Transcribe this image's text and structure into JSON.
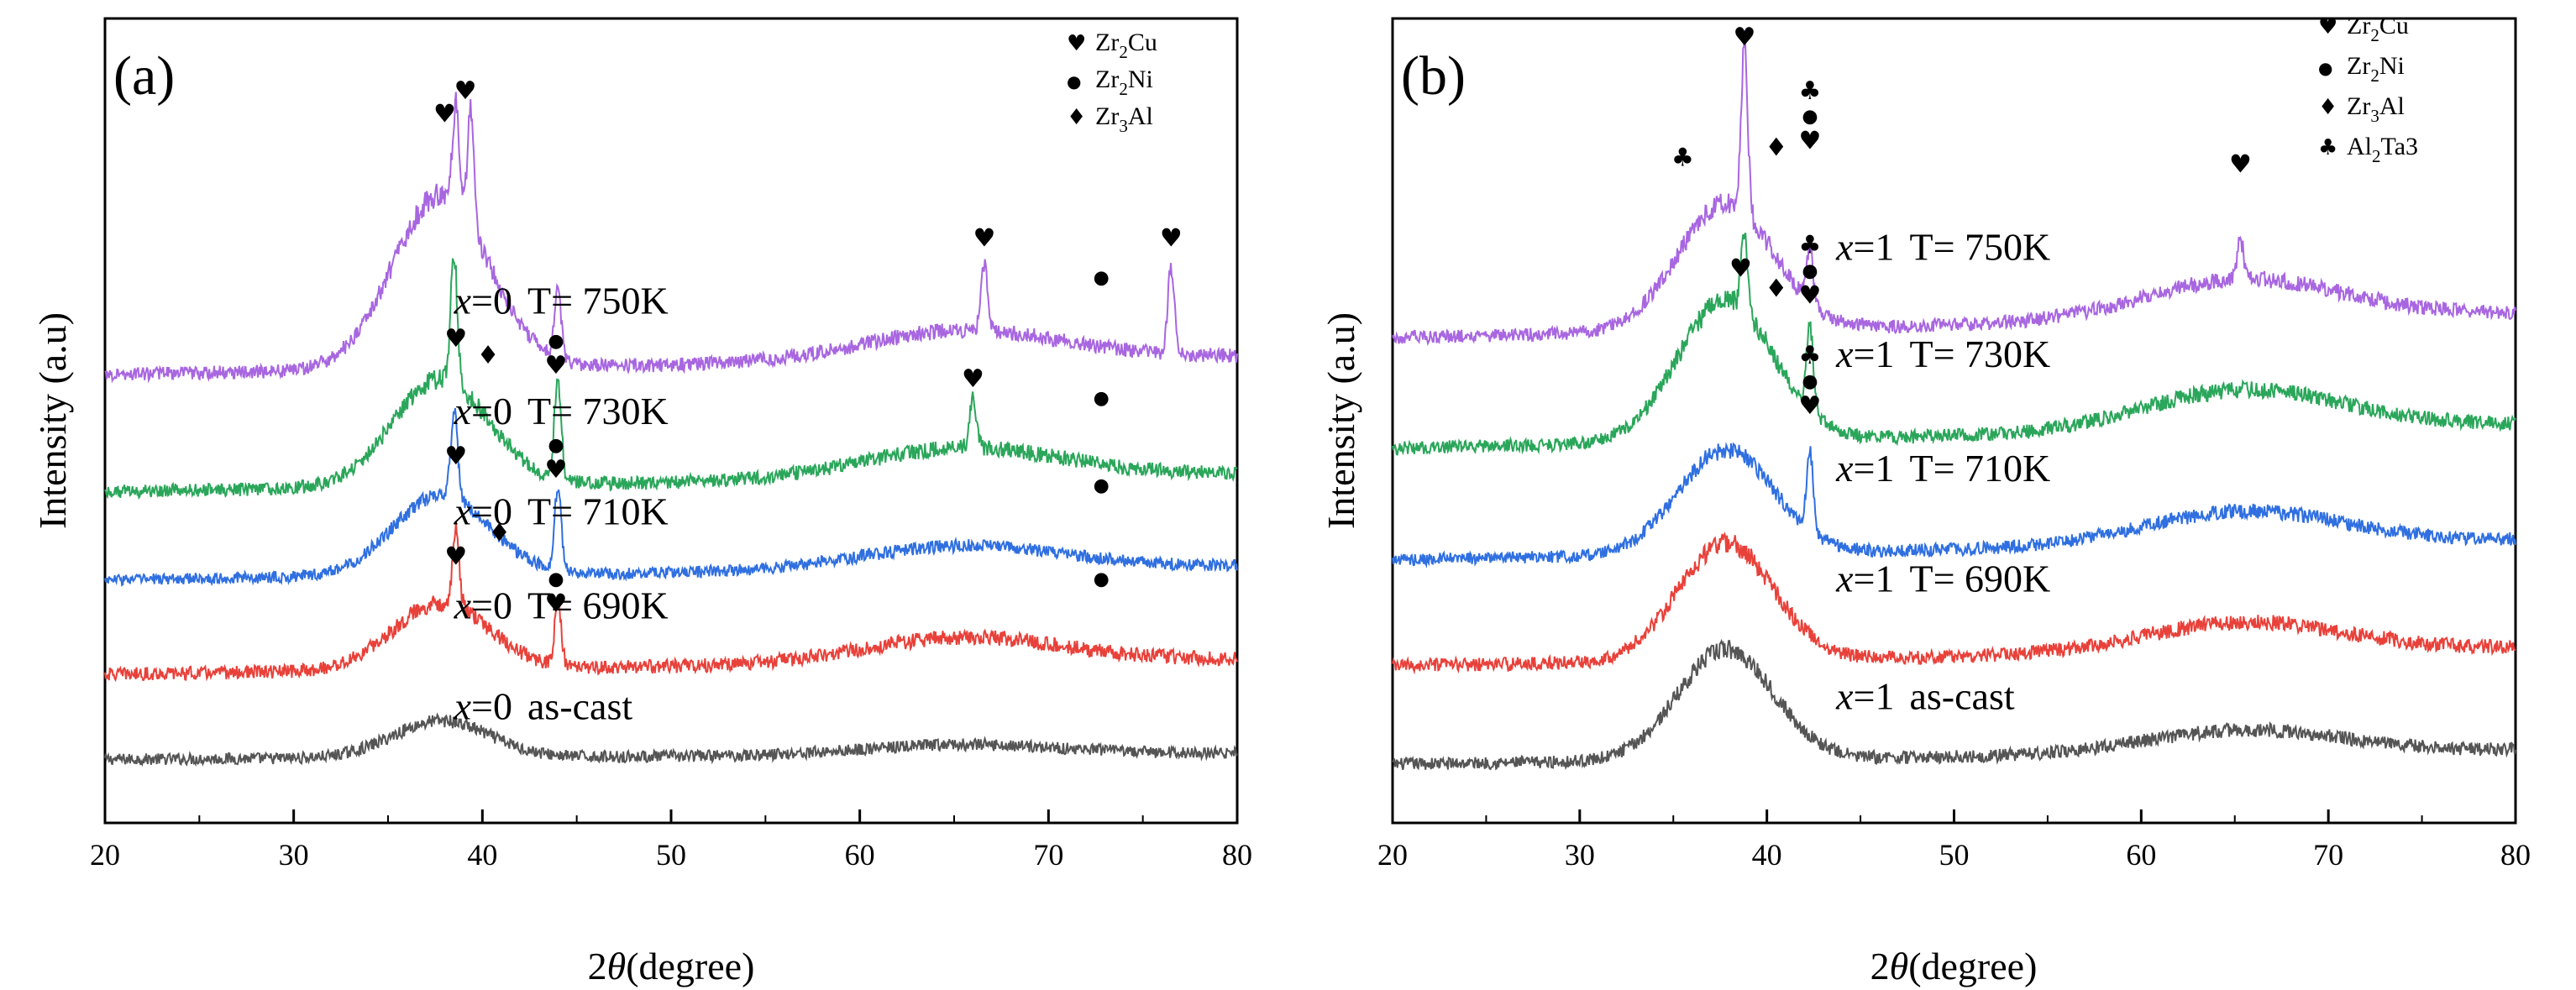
{
  "chart_data": [
    {
      "type": "line",
      "panel_label": "(a)",
      "xlabel_italic": "θ",
      "xlabel_pre": "2",
      "xlabel_post": "(degree)",
      "ylabel": "Intensity (a.u)",
      "xlim": [
        20,
        80
      ],
      "x_ticks": [
        20,
        30,
        40,
        50,
        60,
        70,
        80
      ],
      "tick_labels": [
        "20",
        "30",
        "40",
        "50",
        "60",
        "70",
        "80"
      ],
      "ylim": [
        0,
        12
      ],
      "y_tick_labels_shown": false,
      "legend": [
        {
          "symbol": "♥",
          "label_base": "Zr",
          "label_sub": "2",
          "label_tail": "Cu"
        },
        {
          "symbol": "●",
          "label_base": "Zr",
          "label_sub": "2",
          "label_tail": "Ni"
        },
        {
          "symbol": "♦",
          "label_base": "Zr",
          "label_sub": "3",
          "label_tail": "Al"
        }
      ],
      "series": [
        {
          "var": "x",
          "eq": "=0",
          "cond": "as-cast",
          "color": "#555555",
          "baseline": 1.0,
          "amp1": 0.55,
          "amp2": 0.15,
          "noise": 0.22,
          "peaks": [],
          "label_x": 38.5,
          "label_y": 1.55
        },
        {
          "var": "x",
          "eq": "=0",
          "cond": "T= 690K",
          "color": "#e8413a",
          "baseline": 2.35,
          "amp1": 1.0,
          "amp2": 0.38,
          "noise": 0.26,
          "peaks": [
            [
              38.6,
              1.1
            ],
            [
              44.0,
              0.9
            ]
          ],
          "label_x": 38.5,
          "label_y": 3.05
        },
        {
          "var": "x",
          "eq": "=0",
          "cond": "T= 710K",
          "color": "#2f6fe0",
          "baseline": 3.75,
          "amp1": 1.2,
          "amp2": 0.35,
          "noise": 0.22,
          "peaks": [
            [
              38.5,
              1.3
            ],
            [
              44.0,
              1.25
            ]
          ],
          "label_x": 38.5,
          "label_y": 4.45
        },
        {
          "var": "x",
          "eq": "=0",
          "cond": "T= 730K",
          "color": "#2aa65a",
          "baseline": 5.1,
          "amp1": 1.6,
          "amp2": 0.45,
          "noise": 0.26,
          "peaks": [
            [
              38.5,
              1.9
            ],
            [
              44.0,
              1.5
            ],
            [
              66.0,
              0.7
            ]
          ],
          "label_x": 38.5,
          "label_y": 5.95
        },
        {
          "var": "x",
          "eq": "=0",
          "cond": "T= 750K",
          "color": "#a866e0",
          "baseline": 6.85,
          "amp1": 2.6,
          "amp2": 0.45,
          "noise": 0.26,
          "peaks": [
            [
              38.6,
              1.5
            ],
            [
              39.4,
              1.7
            ],
            [
              44.0,
              1.0
            ],
            [
              66.6,
              1.0
            ],
            [
              76.5,
              1.3
            ]
          ],
          "label_x": 38.5,
          "label_y": 7.6
        }
      ],
      "markers": [
        {
          "x": 40.9,
          "y": 4.2,
          "sym": "♦"
        },
        {
          "x": 43.9,
          "y": 3.55,
          "sym": "●"
        },
        {
          "x": 43.9,
          "y": 3.15,
          "sym": "♥"
        },
        {
          "x": 38.6,
          "y": 3.85,
          "sym": "♥"
        },
        {
          "x": 72.8,
          "y": 3.55,
          "sym": "●"
        },
        {
          "x": 43.9,
          "y": 5.55,
          "sym": "●"
        },
        {
          "x": 43.9,
          "y": 5.15,
          "sym": "♥"
        },
        {
          "x": 38.6,
          "y": 5.35,
          "sym": "♥"
        },
        {
          "x": 72.8,
          "y": 4.95,
          "sym": "●"
        },
        {
          "x": 40.3,
          "y": 6.85,
          "sym": "♦"
        },
        {
          "x": 43.9,
          "y": 7.1,
          "sym": "●"
        },
        {
          "x": 43.9,
          "y": 6.7,
          "sym": "♥"
        },
        {
          "x": 38.6,
          "y": 7.1,
          "sym": "♥"
        },
        {
          "x": 66.0,
          "y": 6.5,
          "sym": "♥"
        },
        {
          "x": 72.8,
          "y": 6.25,
          "sym": "●"
        },
        {
          "x": 38.0,
          "y": 10.45,
          "sym": "♥"
        },
        {
          "x": 39.1,
          "y": 10.8,
          "sym": "♥"
        },
        {
          "x": 66.6,
          "y": 8.6,
          "sym": "♥"
        },
        {
          "x": 72.8,
          "y": 8.05,
          "sym": "●"
        },
        {
          "x": 76.5,
          "y": 8.6,
          "sym": "♥"
        }
      ]
    },
    {
      "type": "line",
      "panel_label": "(b)",
      "xlabel_italic": "θ",
      "xlabel_pre": "2",
      "xlabel_post": "(degree)",
      "ylabel": "Intensity (a.u)",
      "xlim": [
        20,
        80
      ],
      "x_ticks": [
        20,
        30,
        40,
        50,
        60,
        70,
        80
      ],
      "tick_labels": [
        "20",
        "30",
        "40",
        "50",
        "60",
        "70",
        "80"
      ],
      "ylim": [
        0,
        12
      ],
      "y_tick_labels_shown": false,
      "legend": [
        {
          "symbol": "♥",
          "label_base": "Zr",
          "label_sub": "2",
          "label_tail": "Cu"
        },
        {
          "symbol": "●",
          "label_base": "Zr",
          "label_sub": "2",
          "label_tail": "Ni"
        },
        {
          "symbol": "♦",
          "label_base": "Zr",
          "label_sub": "3",
          "label_tail": "Al"
        },
        {
          "symbol": "♣",
          "label_base": "Al",
          "label_sub": "2",
          "label_tail": "Ta3"
        }
      ],
      "series": [
        {
          "var": "x",
          "eq": "=1",
          "cond": "as-cast",
          "color": "#555555",
          "baseline": 1.0,
          "amp1": 1.65,
          "amp2": 0.35,
          "noise": 0.24,
          "peaks": [],
          "label_x": 43.7,
          "label_y": 1.7
        },
        {
          "var": "x",
          "eq": "=1",
          "cond": "T= 690K",
          "color": "#e8413a",
          "baseline": 2.5,
          "amp1": 1.75,
          "amp2": 0.45,
          "noise": 0.26,
          "peaks": [],
          "label_x": 43.7,
          "label_y": 3.45
        },
        {
          "var": "x",
          "eq": "=1",
          "cond": "T= 710K",
          "color": "#2f6fe0",
          "baseline": 4.1,
          "amp1": 1.55,
          "amp2": 0.5,
          "noise": 0.24,
          "peaks": [
            [
              42.3,
              1.2
            ]
          ],
          "label_x": 43.7,
          "label_y": 5.1
        },
        {
          "var": "x",
          "eq": "=1",
          "cond": "T= 730K",
          "color": "#2aa65a",
          "baseline": 5.8,
          "amp1": 2.1,
          "amp2": 0.6,
          "noise": 0.26,
          "peaks": [
            [
              38.8,
              1.1
            ],
            [
              42.3,
              1.3
            ]
          ],
          "label_x": 43.7,
          "label_y": 6.8
        },
        {
          "var": "x",
          "eq": "=1",
          "cond": "T= 750K",
          "color": "#a866e0",
          "baseline": 7.45,
          "amp1": 1.9,
          "amp2": 0.6,
          "noise": 0.26,
          "peaks": [
            [
              38.8,
              2.5
            ],
            [
              42.3,
              0.8
            ],
            [
              65.3,
              0.6
            ]
          ],
          "label_x": 43.7,
          "label_y": 8.4
        }
      ],
      "markers": [
        {
          "x": 42.3,
          "y": 6.85,
          "sym": "♣"
        },
        {
          "x": 42.3,
          "y": 6.5,
          "sym": "●"
        },
        {
          "x": 42.3,
          "y": 6.1,
          "sym": "♥"
        },
        {
          "x": 38.6,
          "y": 8.15,
          "sym": "♥"
        },
        {
          "x": 40.5,
          "y": 7.85,
          "sym": "♦"
        },
        {
          "x": 42.3,
          "y": 8.5,
          "sym": "♣"
        },
        {
          "x": 42.3,
          "y": 8.15,
          "sym": "●"
        },
        {
          "x": 42.3,
          "y": 7.75,
          "sym": "♥"
        },
        {
          "x": 35.5,
          "y": 9.8,
          "sym": "♣"
        },
        {
          "x": 38.8,
          "y": 11.6,
          "sym": "♥"
        },
        {
          "x": 40.5,
          "y": 9.95,
          "sym": "♦"
        },
        {
          "x": 42.3,
          "y": 10.8,
          "sym": "♣"
        },
        {
          "x": 42.3,
          "y": 10.45,
          "sym": "●"
        },
        {
          "x": 42.3,
          "y": 10.05,
          "sym": "♥"
        },
        {
          "x": 65.3,
          "y": 9.7,
          "sym": "♥"
        }
      ]
    }
  ]
}
